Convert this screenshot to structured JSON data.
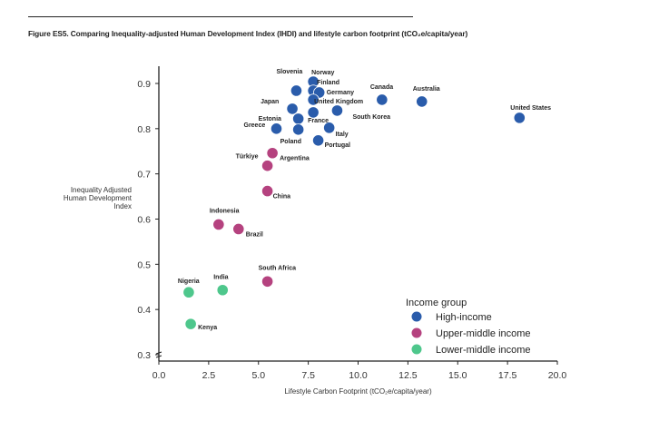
{
  "figure": {
    "caption": "Figure ES5. Comparing Inequality-adjusted Human Development Index (IHDI) and lifestyle carbon footprint (tCO₂e/capita/year)"
  },
  "chart_data": {
    "type": "scatter",
    "title": "Figure ES5. Comparing Inequality-adjusted Human Development Index (IHDI) and lifestyle carbon footprint (tCO₂e/capita/year)",
    "xlabel": "Lifestyle Carbon Footprint (tCO₂e/capita/year)",
    "ylabel": [
      "Inequality Adjusted",
      "Human Development",
      "Index"
    ],
    "xlim": [
      0,
      20
    ],
    "ylim": [
      0.3,
      0.92
    ],
    "xticks": [
      "0.0",
      "2.5",
      "5.0",
      "7.5",
      "10.0",
      "12.5",
      "15.0",
      "17.5",
      "20.0"
    ],
    "yticks": [
      "0.3",
      "0.4",
      "0.5",
      "0.6",
      "0.7",
      "0.8",
      "0.9"
    ],
    "grid": false,
    "legend": {
      "title": "Income group",
      "placement": "bottom-right",
      "entries": [
        {
          "name": "High-income",
          "color": "#2a5cab"
        },
        {
          "name": "Upper-middle income",
          "color": "#b5427f"
        },
        {
          "name": "Lower-middle income",
          "color": "#4ec78c"
        }
      ]
    },
    "series": [
      {
        "name": "High-income",
        "color": "#2a5cab",
        "points": [
          {
            "label": "Slovenia",
            "x": 6.9,
            "y": 0.884
          },
          {
            "label": "Norway",
            "x": 7.75,
            "y": 0.904
          },
          {
            "label": "Finland",
            "x": 7.75,
            "y": 0.884
          },
          {
            "label": "Germany",
            "x": 8.05,
            "y": 0.88
          },
          {
            "label": "United Kingdom",
            "x": 7.75,
            "y": 0.864
          },
          {
            "label": "Japan",
            "x": 6.7,
            "y": 0.844
          },
          {
            "label": "France",
            "x": 7.75,
            "y": 0.836
          },
          {
            "label": "Estonia",
            "x": 7.0,
            "y": 0.822
          },
          {
            "label": "Greece",
            "x": 5.9,
            "y": 0.8
          },
          {
            "label": "Poland",
            "x": 7.0,
            "y": 0.798
          },
          {
            "label": "South Korea",
            "x": 8.95,
            "y": 0.84
          },
          {
            "label": "Italy",
            "x": 8.55,
            "y": 0.802
          },
          {
            "label": "Portugal",
            "x": 8.0,
            "y": 0.774
          },
          {
            "label": "Canada",
            "x": 11.2,
            "y": 0.864
          },
          {
            "label": "Australia",
            "x": 13.2,
            "y": 0.86
          },
          {
            "label": "United States",
            "x": 18.1,
            "y": 0.824
          }
        ]
      },
      {
        "name": "Upper-middle income",
        "color": "#b5427f",
        "points": [
          {
            "label": "Argentina",
            "x": 5.7,
            "y": 0.746
          },
          {
            "label": "Türkiye",
            "x": 5.45,
            "y": 0.718
          },
          {
            "label": "China",
            "x": 5.45,
            "y": 0.662
          },
          {
            "label": "Indonesia",
            "x": 3.0,
            "y": 0.588
          },
          {
            "label": "Brazil",
            "x": 4.0,
            "y": 0.578
          },
          {
            "label": "South Africa",
            "x": 5.45,
            "y": 0.462
          }
        ]
      },
      {
        "name": "Lower-middle income",
        "color": "#4ec78c",
        "points": [
          {
            "label": "Nigeria",
            "x": 1.5,
            "y": 0.438
          },
          {
            "label": "India",
            "x": 3.2,
            "y": 0.443
          },
          {
            "label": "Kenya",
            "x": 1.6,
            "y": 0.368
          }
        ]
      }
    ]
  }
}
